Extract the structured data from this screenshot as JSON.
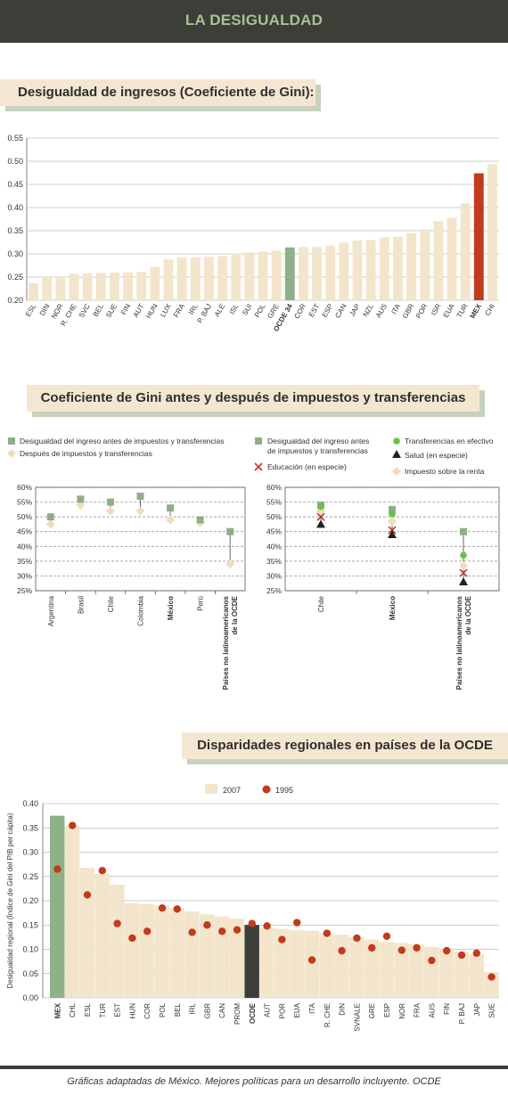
{
  "header": {
    "title": "LA DESIGUALDAD"
  },
  "footer": {
    "prefix": "Gráficas adaptadas de ",
    "italic": "México. Mejores políticas para un desarrollo incluyente",
    "suffix": ". OCDE"
  },
  "colors": {
    "bar": "#f3e5cb",
    "accent_green": "#8fb089",
    "accent_red": "#c13b1c",
    "dark": "#3c3e37",
    "dot_red": "#c13b1c",
    "light_green": "#6cc04a",
    "x_red": "#c0392b"
  },
  "chart_data": [
    {
      "type": "bar",
      "title": "Desigualdad de ingresos (Coeficiente de Gini):",
      "categories": [
        "ESL",
        "DIN",
        "NOR",
        "R. CHE",
        "SVC",
        "BEL",
        "SUE",
        "FIN",
        "AUT",
        "HUN",
        "LUX",
        "FRA",
        "IRL",
        "P. BAJ",
        "ALE",
        "ISL",
        "SUI",
        "POL",
        "GRE",
        "OCDE 34",
        "COR",
        "EST",
        "ESP",
        "CAN",
        "JAP",
        "NZL",
        "AUS",
        "ITA",
        "GBR",
        "POR",
        "ISR",
        "EUA",
        "TUR",
        "MEX",
        "CHI"
      ],
      "values": [
        0.237,
        0.25,
        0.25,
        0.257,
        0.258,
        0.259,
        0.26,
        0.26,
        0.261,
        0.272,
        0.288,
        0.293,
        0.293,
        0.294,
        0.295,
        0.301,
        0.303,
        0.305,
        0.307,
        0.314,
        0.315,
        0.315,
        0.318,
        0.324,
        0.329,
        0.33,
        0.336,
        0.337,
        0.345,
        0.353,
        0.371,
        0.378,
        0.409,
        0.474,
        0.494
      ],
      "highlight_green": [
        "OCDE 34"
      ],
      "highlight_red": [
        "MEX"
      ],
      "bold_labels": [
        "OCDE 34",
        "MEX"
      ],
      "ylim": [
        0.2,
        0.55
      ],
      "yticks": [
        "0.20",
        "0.25",
        "0.30",
        "0.35",
        "0.40",
        "0.45",
        "0.50",
        "0.55"
      ]
    },
    {
      "type": "scatter",
      "title": "Coeficiente de Gini antes y después de impuestos y transferencias",
      "legend": [
        "Desigualdad del ingreso antes de impuestos y transferencias",
        "Después de impuestos y transferencias"
      ],
      "categories": [
        "Argentina",
        "Brasil",
        "Chile",
        "Colombia",
        "México",
        "Perú",
        "Países no latinoamericanos de la OCDE"
      ],
      "bold_labels": [
        "México",
        "Países no latinoamericanos de la OCDE"
      ],
      "series": [
        {
          "name": "Desigualdad del ingreso antes de impuestos y transferencias",
          "values": [
            50,
            56,
            55,
            57,
            53,
            49,
            45
          ]
        },
        {
          "name": "Después de impuestos y transferencias",
          "values": [
            47.5,
            54,
            52,
            52,
            49,
            48,
            34
          ]
        }
      ],
      "ylim": [
        25,
        60
      ],
      "yticks": [
        "25%",
        "30%",
        "35%",
        "40%",
        "45%",
        "50%",
        "55%",
        "60%"
      ]
    },
    {
      "type": "scatter",
      "legend": [
        "Desigualdad del ingreso antes de impuestos y transferencias",
        "Transferencias en efectivo",
        "Salud (en especie)",
        "Educación (en especie)",
        "Impuesto sobre la renta"
      ],
      "categories": [
        "Chile",
        "México",
        "Países no latinoamericanos de la OCDE"
      ],
      "bold_labels": [
        "México",
        "Países no latinoamericanos de la OCDE"
      ],
      "series": [
        {
          "name": "Desigualdad del ingreso antes de impuestos y transferencias",
          "values": [
            54,
            52.5,
            45
          ]
        },
        {
          "name": "Transferencias en efectivo",
          "values": [
            53.5,
            51,
            37
          ]
        },
        {
          "name": "Salud (en especie)",
          "values": [
            47.5,
            44,
            28
          ]
        },
        {
          "name": "Educación (en especie)",
          "values": [
            50,
            45.5,
            31
          ]
        },
        {
          "name": "Impuesto sobre la renta",
          "values": [
            52,
            48.5,
            33.5
          ]
        }
      ],
      "ylim": [
        25,
        60
      ],
      "yticks": [
        "25%",
        "30%",
        "35%",
        "40%",
        "45%",
        "50%",
        "55%",
        "60%"
      ]
    },
    {
      "type": "bar",
      "title": "Disparidades regionales en países de la OCDE",
      "ylabel": "Desigualdad regional (Índice de Gini del PIB per cápita)",
      "categories": [
        "MEX",
        "CHL",
        "ESL",
        "TUR",
        "EST",
        "HUN",
        "COR",
        "POL",
        "BEL",
        "IRL",
        "GBR",
        "CAN",
        "PROM",
        "OCDE",
        "AUT",
        "POR",
        "EUA",
        "ITA",
        "R. CHE",
        "DIN",
        "SVNALE",
        "GRE",
        "ESP",
        "NOR",
        "FRA",
        "AUS",
        "FIN",
        "P. BAJ",
        "JAP",
        "SUE"
      ],
      "bold_labels": [
        "MEX",
        "OCDE"
      ],
      "highlight_green": [
        "MEX"
      ],
      "highlight_dark": [
        "OCDE"
      ],
      "series": [
        {
          "name": "2007",
          "values": [
            0.375,
            0.355,
            0.268,
            0.255,
            0.233,
            0.195,
            0.193,
            0.19,
            0.185,
            0.178,
            0.172,
            0.168,
            0.163,
            0.15,
            0.145,
            0.142,
            0.14,
            0.138,
            0.133,
            0.13,
            0.125,
            0.12,
            0.115,
            0.113,
            0.11,
            0.105,
            0.1,
            0.095,
            0.09,
            0.053
          ]
        },
        {
          "name": "1995",
          "values": [
            0.265,
            0.355,
            0.212,
            0.262,
            0.153,
            0.123,
            0.137,
            0.185,
            0.183,
            0.135,
            0.15,
            0.137,
            0.14,
            0.153,
            0.148,
            0.12,
            0.155,
            0.078,
            0.133,
            0.097,
            0.123,
            0.103,
            0.127,
            0.098,
            0.103,
            0.077,
            0.097,
            0.088,
            0.092,
            0.043
          ]
        }
      ],
      "ylim": [
        0,
        0.4
      ],
      "yticks": [
        "0.00",
        "0.05",
        "0.10",
        "0.15",
        "0.20",
        "0.25",
        "0.30",
        "0.35",
        "0.40"
      ]
    }
  ]
}
